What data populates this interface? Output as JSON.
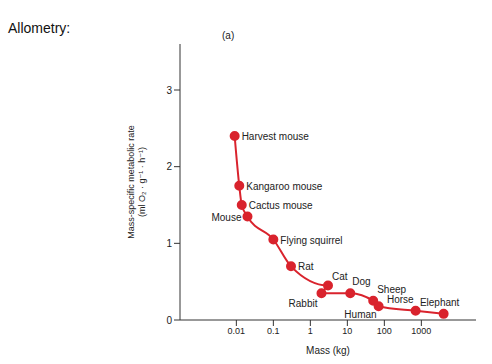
{
  "chart_data": {
    "type": "line",
    "title": "Allometry:",
    "panel_label": "(a)",
    "x_label": "Mass (kg)",
    "y_label": "Mass-specific metabolic rate (ml O₂ · g⁻¹ · h⁻¹)",
    "x": [
      0.009,
      0.012,
      0.014,
      0.02,
      0.1,
      0.3,
      3,
      2,
      12,
      50,
      70,
      700,
      4000
    ],
    "values": [
      2.4,
      1.75,
      1.5,
      1.35,
      1.05,
      0.7,
      0.45,
      0.35,
      0.35,
      0.25,
      0.18,
      0.12,
      0.08
    ],
    "point_labels": [
      "Harvest mouse",
      "Kangaroo mouse",
      "Cactus mouse",
      "Mouse",
      "Flying squirrel",
      "Rat",
      "Cat",
      "Rabbit",
      "Dog",
      "Sheep",
      "Human",
      "Horse",
      "Elephant"
    ],
    "color": "#d9232d",
    "marker": "circle",
    "log": "x",
    "xlim": [
      0.0003,
      30000
    ],
    "xticks": [
      0.01,
      0.1,
      1,
      10,
      100,
      1000
    ],
    "ylim": [
      0,
      3.6
    ],
    "yticks": [
      0,
      1,
      2,
      3
    ],
    "data_labels": true
  }
}
